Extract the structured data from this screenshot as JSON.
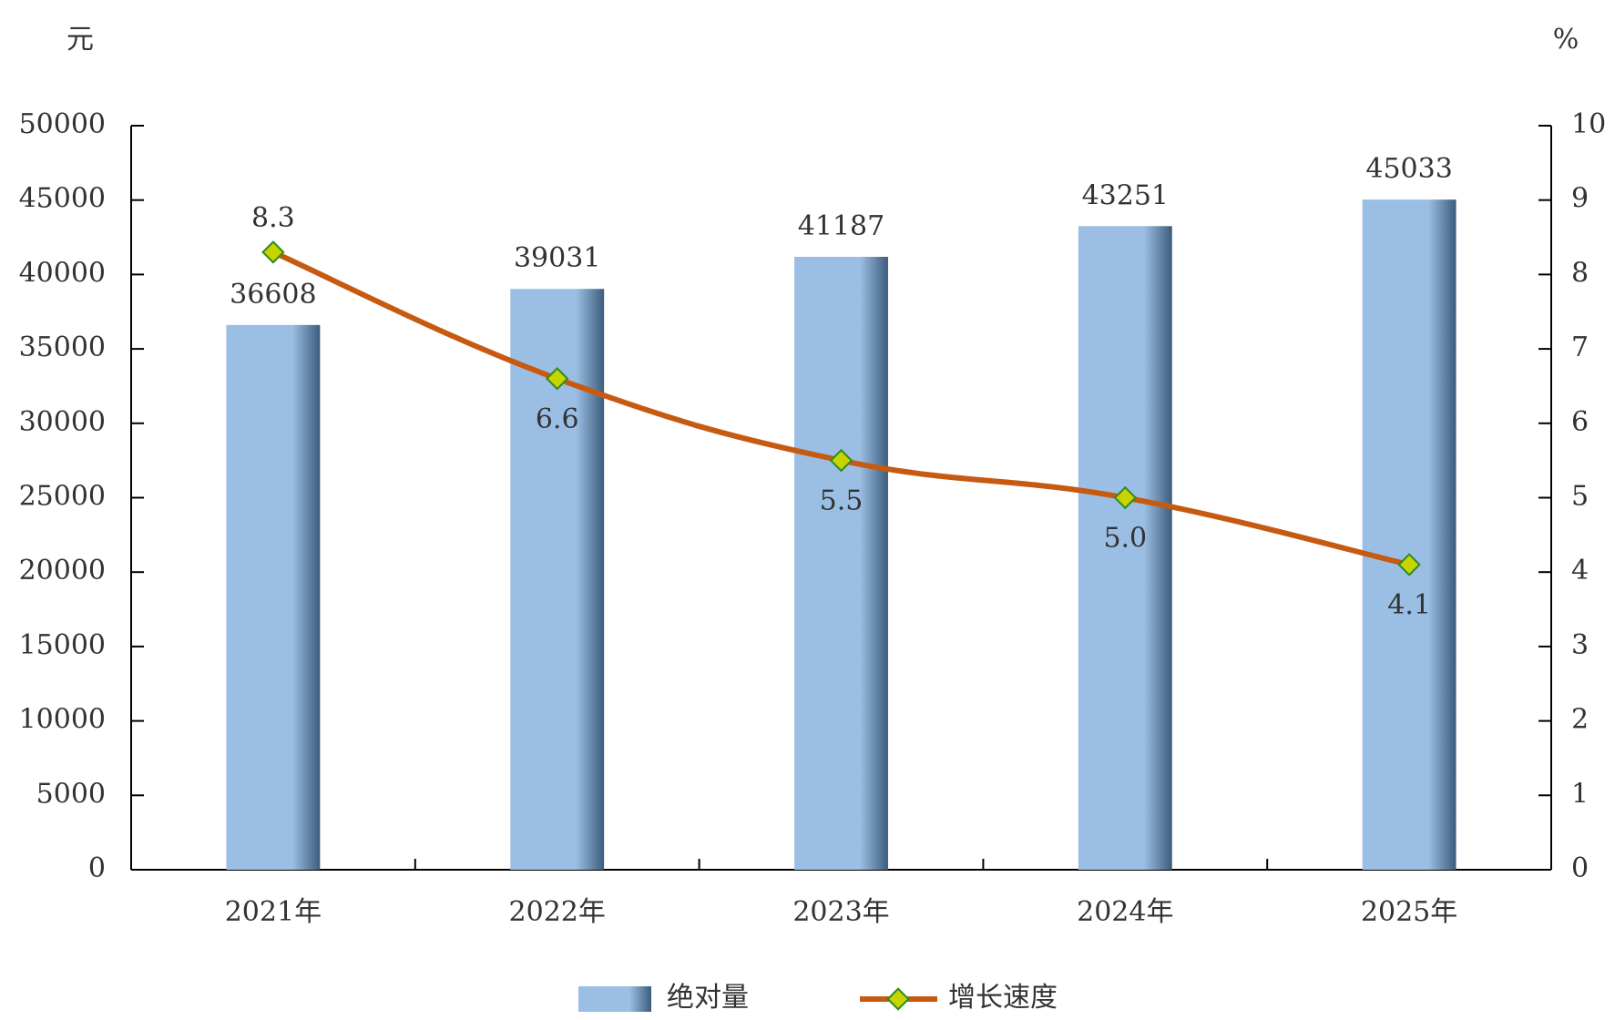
{
  "chart_data": {
    "type": "bar",
    "y_label": "元",
    "y2_label": "%",
    "categories": [
      "2021年",
      "2022年",
      "2023年",
      "2024年",
      "2025年"
    ],
    "series": [
      {
        "name": "绝对量",
        "type": "bar",
        "color": "#9bbfe4",
        "values": [
          36608,
          39031,
          41187,
          43251,
          45033
        ]
      },
      {
        "name": "增长速度",
        "type": "line",
        "axis": "y2",
        "color": "#c65a11",
        "marker_color": "#c8d400",
        "values": [
          8.3,
          6.6,
          5.5,
          5.0,
          4.1
        ],
        "value_labels": [
          "8.3",
          "6.6",
          "5.5",
          "5.0",
          "4.1"
        ]
      }
    ],
    "ylim": [
      0,
      50000
    ],
    "yticks": [
      0,
      5000,
      10000,
      15000,
      20000,
      25000,
      30000,
      35000,
      40000,
      45000,
      50000
    ],
    "y2lim": [
      0,
      10
    ],
    "y2ticks": [
      0,
      1,
      2,
      3,
      4,
      5,
      6,
      7,
      8,
      9,
      10
    ],
    "legend": "bottom"
  }
}
